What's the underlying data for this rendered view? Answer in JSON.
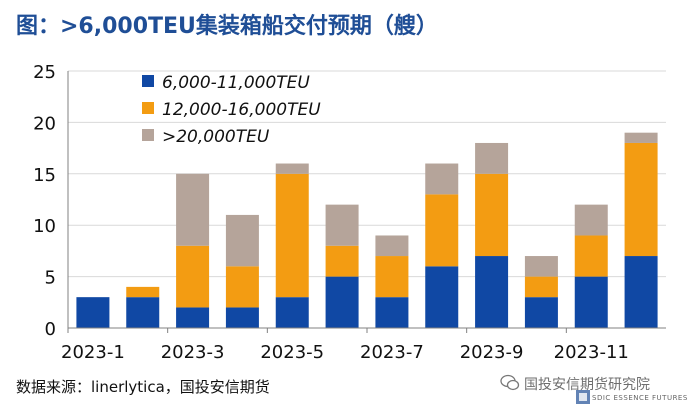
{
  "title": "图：>6,000TEU集装箱船交付预期（艘）",
  "source": "数据来源：linerlytica，国投安信期货",
  "watermark": {
    "text": "国投安信期货研究院",
    "sub": "SDIC ESSENCE FUTURES"
  },
  "colors": {
    "s1": "#1048a4",
    "s2": "#f39c12",
    "s3": "#b5a49a",
    "grid": "#d9d9d9",
    "axis": "#808080"
  },
  "chart_data": {
    "type": "bar",
    "stacked": true,
    "title": "图：>6,000TEU集装箱船交付预期（艘）",
    "xlabel": "",
    "ylabel": "",
    "ylim": [
      0,
      25
    ],
    "yticks": [
      "0",
      "5",
      "10",
      "15",
      "20",
      "25"
    ],
    "grid": true,
    "legend_position": "top-left",
    "categories": [
      "2023-1",
      "2023-2",
      "2023-3",
      "2023-4",
      "2023-5",
      "2023-6",
      "2023-7",
      "2023-8",
      "2023-9",
      "2023-10",
      "2023-11",
      "2023-12"
    ],
    "xtick_labels": [
      "2023-1",
      "2023-3",
      "2023-5",
      "2023-7",
      "2023-9",
      "2023-11"
    ],
    "series": [
      {
        "name": "6,000-11,000TEU",
        "values": [
          3,
          3,
          2,
          2,
          3,
          5,
          3,
          6,
          7,
          3,
          5,
          7
        ]
      },
      {
        "name": "12,000-16,000TEU",
        "values": [
          0,
          1,
          6,
          4,
          12,
          3,
          4,
          7,
          8,
          2,
          4,
          11
        ]
      },
      {
        "name": ">20,000TEU",
        "values": [
          0,
          0,
          7,
          5,
          1,
          4,
          2,
          3,
          3,
          2,
          3,
          1
        ]
      }
    ]
  }
}
